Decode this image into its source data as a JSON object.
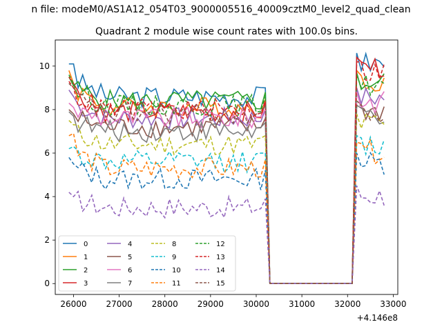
{
  "figure_title": "n file: modeM0/AS1A12_054T03_9000005516_40009cztM0_level2_quad_clean",
  "chart_data": {
    "type": "line",
    "title": "Quadrant 2 module wise count rates with 100.0s bins.",
    "xlabel": "",
    "ylabel": "",
    "x_offset_label": "+4.146e8",
    "xlim": [
      25600,
      33100
    ],
    "ylim": [
      -0.5,
      11.2
    ],
    "xticks": [
      26000,
      27000,
      28000,
      29000,
      30000,
      31000,
      32000,
      33000
    ],
    "yticks": [
      0,
      2,
      4,
      6,
      8,
      10
    ],
    "grid": false,
    "legend_position": "lower-left",
    "legend_columns": 4,
    "x_start": 25900,
    "x_step": 100,
    "series": [
      {
        "name": "0",
        "color": "#1f77b4",
        "dash": "solid",
        "level": 8.6,
        "first": 10.1,
        "second": 10.1,
        "peak": 10.6
      },
      {
        "name": "1",
        "color": "#ff7f0e",
        "dash": "solid",
        "level": 8.1,
        "first": 9.8,
        "second": 9.2,
        "peak": 9.8
      },
      {
        "name": "2",
        "color": "#2ca02c",
        "dash": "solid",
        "level": 8.4,
        "first": 9.5,
        "second": 9.1,
        "peak": 9.7
      },
      {
        "name": "3",
        "color": "#d62728",
        "dash": "solid",
        "level": 7.9,
        "first": 9.5,
        "second": 9.2,
        "peak": 10.4
      },
      {
        "name": "4",
        "color": "#9467bd",
        "dash": "solid",
        "level": 7.6,
        "first": 8.9,
        "second": 8.6,
        "peak": 9.0
      },
      {
        "name": "5",
        "color": "#8c564b",
        "dash": "solid",
        "level": 7.2,
        "first": 8.0,
        "second": 7.8,
        "peak": 8.4
      },
      {
        "name": "6",
        "color": "#e377c2",
        "dash": "solid",
        "level": 7.6,
        "first": 8.3,
        "second": 8.1,
        "peak": 8.8
      },
      {
        "name": "7",
        "color": "#7f7f7f",
        "dash": "solid",
        "level": 7.0,
        "first": 7.9,
        "second": 7.7,
        "peak": 8.2
      },
      {
        "name": "8",
        "color": "#bcbd22",
        "dash": "dashed",
        "level": 6.4,
        "first": 7.5,
        "second": 7.3,
        "peak": 7.8
      },
      {
        "name": "9",
        "color": "#17becf",
        "dash": "dashed",
        "level": 5.6,
        "first": 6.2,
        "second": 6.3,
        "peak": 6.8
      },
      {
        "name": "10",
        "color": "#1f77b4",
        "dash": "dashed",
        "level": 4.8,
        "first": 5.8,
        "second": 5.5,
        "peak": 6.0
      },
      {
        "name": "11",
        "color": "#ff7f0e",
        "dash": "dashed",
        "level": 5.3,
        "first": 6.8,
        "second": 6.9,
        "peak": 6.5
      },
      {
        "name": "12",
        "color": "#2ca02c",
        "dash": "dashed",
        "level": 8.2,
        "first": 9.6,
        "second": 9.2,
        "peak": 9.6
      },
      {
        "name": "13",
        "color": "#d62728",
        "dash": "dashed",
        "level": 8.0,
        "first": 9.3,
        "second": 9.0,
        "peak": 10.2
      },
      {
        "name": "14",
        "color": "#9467bd",
        "dash": "dashed",
        "level": 3.5,
        "first": 4.2,
        "second": 4.0,
        "peak": 4.5
      },
      {
        "name": "15",
        "color": "#8c564b",
        "dash": "dashed",
        "level": 7.8,
        "first": 9.2,
        "second": 9.0,
        "peak": 8.2
      }
    ]
  }
}
